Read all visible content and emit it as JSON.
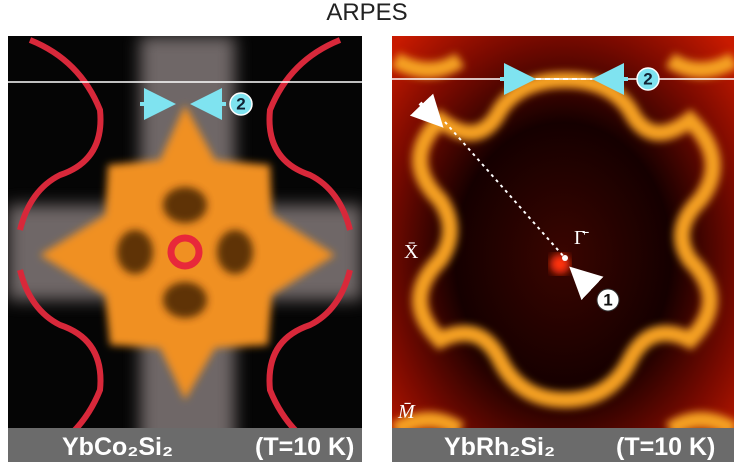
{
  "title": "ARPES",
  "panels": [
    {
      "compound": "YbCo₂Si₂",
      "condition": "(T=10 K)",
      "markers": [
        "2"
      ]
    },
    {
      "compound": "YbRh₂Si₂",
      "condition": "(T=10 K)",
      "markers": [
        "2",
        "1"
      ],
      "points": [
        "X̄",
        "Γ̄",
        "M̄"
      ]
    }
  ]
}
